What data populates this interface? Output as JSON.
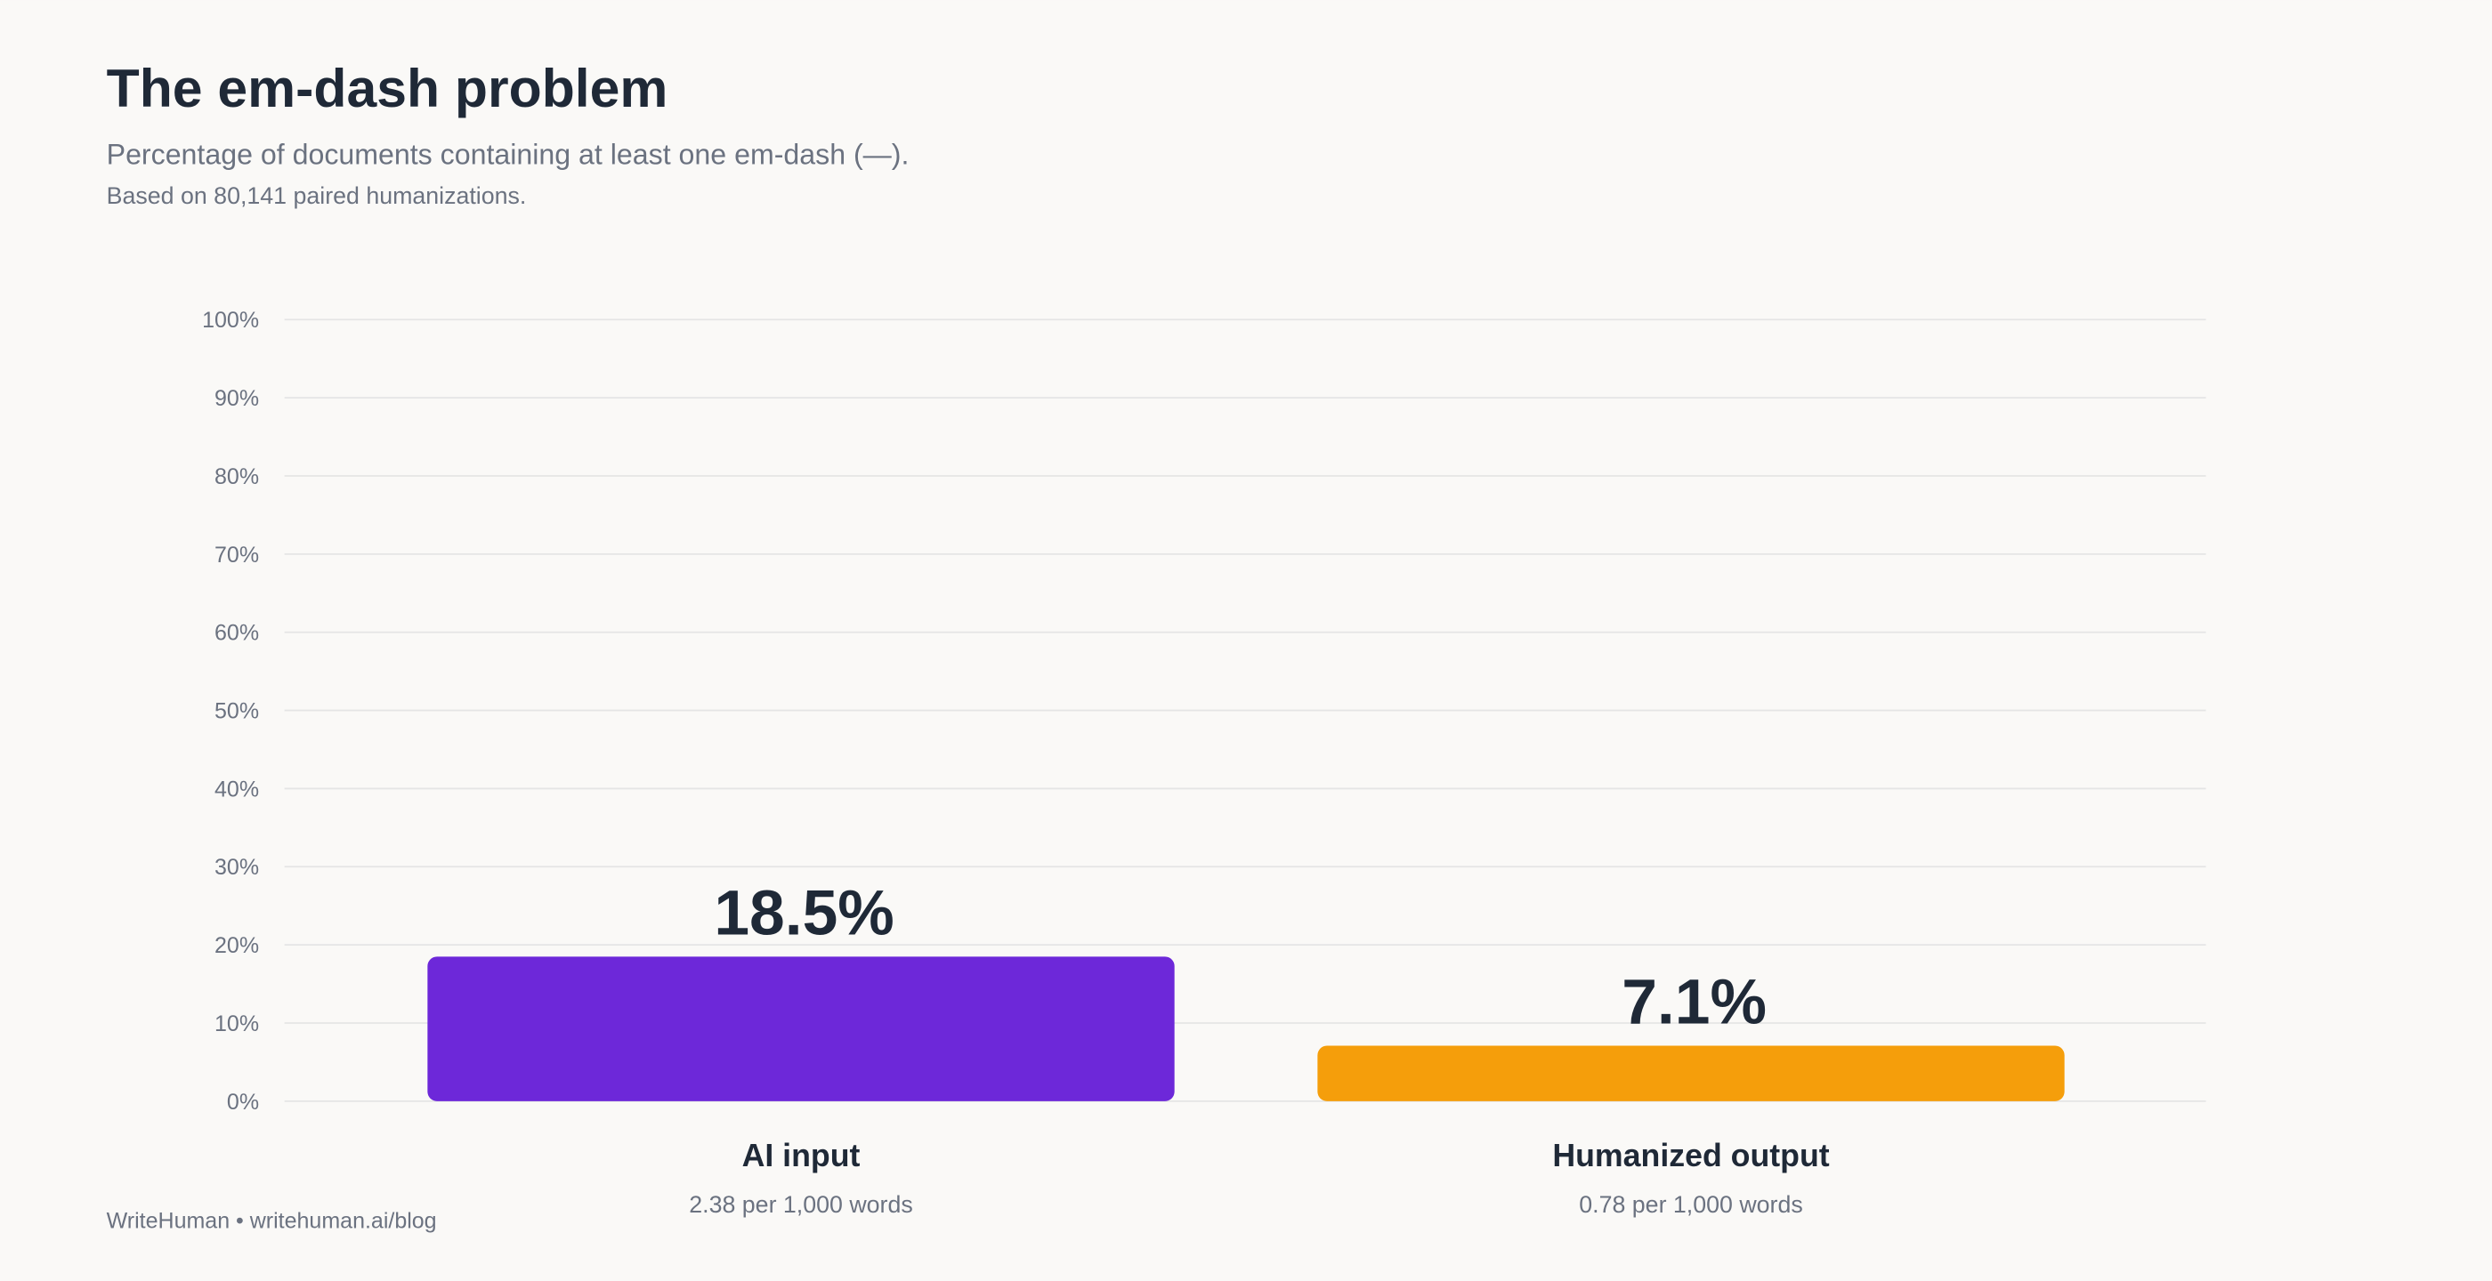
{
  "chart_data": {
    "type": "bar",
    "title": "The em-dash problem",
    "subtitle": "Percentage of documents containing at least one em-dash (—).",
    "note": "Based on 80,141 paired humanizations.",
    "footer": "WriteHuman • writehuman.ai/blog",
    "categories": [
      "AI input",
      "Humanized output"
    ],
    "category_notes": [
      "2.38 per 1,000 words",
      "0.78 per 1,000 words"
    ],
    "values": [
      18.5,
      7.1
    ],
    "value_labels": [
      "18.5%",
      "7.1%"
    ],
    "colors": [
      "#6d28d9",
      "#f59e0b"
    ],
    "ylim": [
      0,
      100
    ],
    "yticks": [
      {
        "value": 0,
        "label": "0%"
      },
      {
        "value": 10,
        "label": "10%"
      },
      {
        "value": 20,
        "label": "20%"
      },
      {
        "value": 30,
        "label": "30%"
      },
      {
        "value": 40,
        "label": "40%"
      },
      {
        "value": 50,
        "label": "50%"
      },
      {
        "value": 60,
        "label": "60%"
      },
      {
        "value": 70,
        "label": "70%"
      },
      {
        "value": 80,
        "label": "80%"
      },
      {
        "value": 90,
        "label": "90%"
      },
      {
        "value": 100,
        "label": "100%"
      }
    ],
    "grid": true
  }
}
